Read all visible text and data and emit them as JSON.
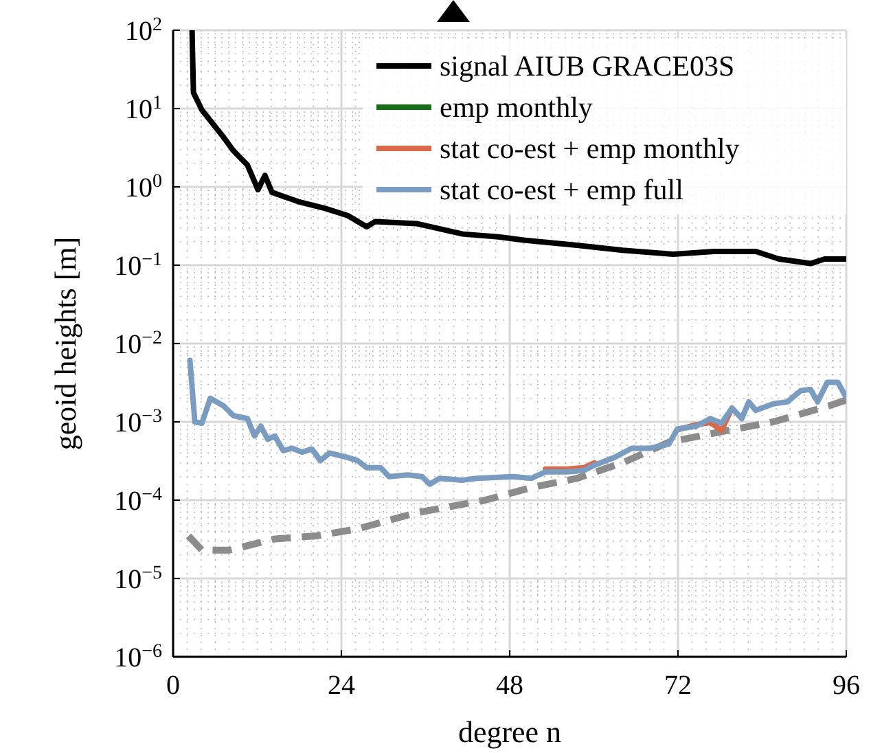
{
  "chart_data": {
    "type": "line",
    "xlabel": "degree n",
    "ylabel": "geoid heights [m]",
    "log": "y",
    "grid": true,
    "legend": "top right",
    "line_style": "solid",
    "marker": "none",
    "xlim": [
      0,
      96
    ],
    "xticks": [
      0,
      24,
      48,
      72,
      96
    ],
    "ylim": [
      1e-06,
      100
    ],
    "yticks": [
      {
        "value": 1e-06,
        "label": "10$^{−6}$"
      },
      {
        "value": 1e-05,
        "label": "10$^{−5}$"
      },
      {
        "value": 0.0001,
        "label": "10$^{−4}$"
      },
      {
        "value": 0.001,
        "label": "10$^{−3}$"
      },
      {
        "value": 0.01,
        "label": "10$^{−2}$"
      },
      {
        "value": 0.1,
        "label": "10$^{−1}$"
      },
      {
        "value": 1,
        "label": "10$^{0}$"
      },
      {
        "value": 10,
        "label": "10$^{1}$"
      },
      {
        "value": 100,
        "label": "10$^{2}$"
      }
    ],
    "series": [
      {
        "name": "signal AIUB GRACE03S",
        "color": "#000000",
        "x": [
          2.7,
          2.9,
          4.1,
          7.2,
          8.6,
          10.6,
          12.1,
          13.1,
          14.1,
          17.8,
          21.7,
          24.9,
          27.6,
          28.8,
          34.7,
          41.3,
          46.4,
          49.8,
          57.6,
          64.1,
          71.3,
          77.2,
          83.1,
          86.4,
          90.9,
          92.9,
          96
        ],
        "values": [
          100,
          16,
          9.6,
          4.3,
          2.9,
          1.9,
          0.92,
          1.4,
          0.85,
          0.65,
          0.53,
          0.43,
          0.31,
          0.36,
          0.34,
          0.25,
          0.23,
          0.21,
          0.18,
          0.155,
          0.138,
          0.15,
          0.15,
          0.12,
          0.105,
          0.12,
          0.12
        ]
      },
      {
        "name": "emp monthly",
        "color": "#1a6e1a"
      },
      {
        "name": "stat co-est + emp monthly",
        "color": "#d9694a",
        "x": [
          53.1,
          56.2,
          58.6,
          60.1,
          62.9,
          71.9,
          74.6,
          76.6,
          78.2,
          79.7
        ],
        "values": [
          0.00025,
          0.00025,
          0.00026,
          0.0003,
          null,
          0.00079,
          0.00092,
          0.00098,
          0.00078,
          0.0015
        ]
      },
      {
        "name": "stat co-est + emp full",
        "color": "#7a9cc0",
        "x": [
          2.4,
          3.1,
          4.1,
          5.3,
          7.2,
          8.6,
          10.6,
          11.6,
          12.5,
          13.5,
          14.5,
          15.7,
          17.0,
          18.4,
          19.8,
          21.0,
          22.3,
          24.9,
          26.3,
          27.6,
          29.6,
          30.8,
          33.5,
          35.5,
          36.6,
          38.0,
          41.3,
          43.3,
          48.4,
          51.1,
          53.1,
          56.2,
          58.6,
          60.1,
          62.9,
          65.4,
          68.0,
          70.7,
          71.9,
          74.6,
          76.6,
          78.2,
          79.7,
          81.1,
          82.1,
          83.1,
          85.6,
          87.6,
          89.5,
          90.9,
          91.9,
          93.3,
          94.8,
          95.8
        ],
        "values": [
          0.0061,
          0.001,
          0.00096,
          0.002,
          0.0016,
          0.0012,
          0.0011,
          0.00066,
          0.00088,
          0.0006,
          0.00066,
          0.00043,
          0.00046,
          0.00041,
          0.00045,
          0.00032,
          0.0004,
          0.00035,
          0.00032,
          0.00026,
          0.00026,
          0.0002,
          0.00021,
          0.0002,
          0.00016,
          0.00019,
          0.00018,
          0.00019,
          0.0002,
          0.00019,
          0.00023,
          0.00023,
          0.00024,
          0.00028,
          0.00035,
          0.00046,
          0.00046,
          0.00052,
          0.00081,
          0.00088,
          0.0011,
          0.00096,
          0.0015,
          0.0011,
          0.0018,
          0.0014,
          0.0017,
          0.0018,
          0.0025,
          0.0026,
          0.0018,
          0.0032,
          0.0032,
          0.0022
        ]
      },
      {
        "color": "#8c8c8c",
        "line_style": "dashed",
        "x": [
          2.2,
          4.1,
          8,
          14.5,
          20.4,
          26.3,
          34.7,
          44.5,
          51.1,
          57.6,
          64.1,
          70.7,
          77.2,
          85.6,
          93.5,
          96
        ],
        "values": [
          3.5e-05,
          2.3e-05,
          2.3e-05,
          3.2e-05,
          3.5e-05,
          4.3e-05,
          6.9e-05,
          0.0001,
          0.000145,
          0.00019,
          0.0003,
          0.00055,
          0.00072,
          0.001,
          0.0016,
          0.0019
        ]
      }
    ]
  }
}
